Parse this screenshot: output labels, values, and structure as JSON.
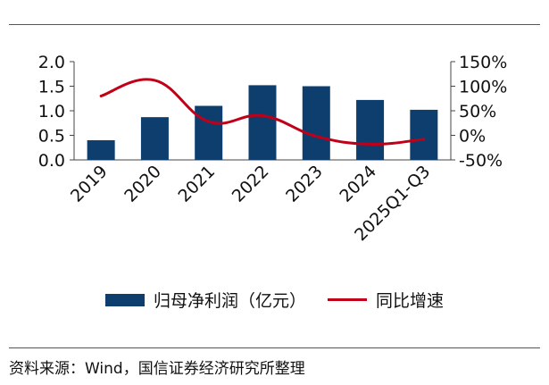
{
  "chart_data": {
    "type": "bar",
    "categories": [
      "2019",
      "2020",
      "2021",
      "2022",
      "2023",
      "2024",
      "2025Q1-Q3"
    ],
    "series": [
      {
        "name": "归母净利润（亿元）",
        "type": "bar",
        "axis": "left",
        "color": "#0d3e6e",
        "values": [
          0.4,
          0.87,
          1.1,
          1.52,
          1.5,
          1.22,
          1.02
        ]
      },
      {
        "name": "同比增速",
        "type": "line",
        "axis": "right",
        "color": "#c00018",
        "values": [
          80,
          112,
          28,
          40,
          -2,
          -18,
          -8
        ]
      }
    ],
    "y_left": {
      "ylim": [
        0,
        2.0
      ],
      "ticks": [
        "0.0",
        "0.5",
        "1.0",
        "1.5",
        "2.0"
      ]
    },
    "y_right": {
      "ylim": [
        -50,
        150
      ],
      "ticks": [
        "-50%",
        "0%",
        "50%",
        "100%",
        "150%"
      ]
    },
    "grid": false,
    "legend_position": "bottom"
  },
  "source_note": "资料来源：Wind，国信证券经济研究所整理"
}
